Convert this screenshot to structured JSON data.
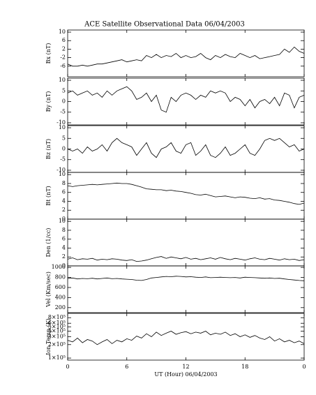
{
  "title": "ACE Satellite Observational Data   06/04/2003",
  "chart_data": [
    {
      "type": "line",
      "ylabel": "Bx (nT)",
      "ylim": [
        -11,
        11
      ],
      "yticks": [
        10,
        6,
        2,
        -2,
        -6
      ],
      "xlim": [
        0,
        24
      ],
      "xticks": [
        0,
        6,
        12,
        18,
        {
          "value": 24,
          "label": "0"
        }
      ],
      "x": [
        0,
        0.5,
        1,
        1.5,
        2,
        2.5,
        3,
        3.5,
        4,
        4.5,
        5,
        5.5,
        6,
        6.5,
        7,
        7.5,
        8,
        8.5,
        9,
        9.5,
        10,
        10.5,
        11,
        11.5,
        12,
        12.5,
        13,
        13.5,
        14,
        14.5,
        15,
        15.5,
        16,
        16.5,
        17,
        17.5,
        18,
        18.5,
        19,
        19.5,
        20,
        20.5,
        21,
        21.5,
        22,
        22.5,
        23,
        23.5,
        24
      ],
      "series": [
        {
          "color": "#000000",
          "values": [
            -5,
            -6,
            -6,
            -5.5,
            -6,
            -5.5,
            -5,
            -5,
            -4.5,
            -4,
            -3.5,
            -3,
            -4,
            -3.5,
            -3,
            -3.5,
            -1,
            -2,
            -0.5,
            -2,
            -1,
            -1.5,
            0,
            -2,
            -1,
            -2,
            -1.5,
            0,
            -2,
            -3,
            -1,
            -2,
            -0.5,
            -1.5,
            -2,
            0,
            -1,
            -2,
            -1,
            -2.5,
            -2,
            -1.5,
            -1,
            -0.5,
            2,
            0.5,
            3,
            1,
            0
          ]
        }
      ]
    },
    {
      "type": "line",
      "ylabel": "By (nT)",
      "ylim": [
        -11,
        11
      ],
      "yticks": [
        10,
        5,
        0,
        -5,
        -10
      ],
      "xlim": [
        0,
        24
      ],
      "xticks": [
        0,
        6,
        12,
        18,
        {
          "value": 24,
          "label": "0"
        }
      ],
      "x": [
        0,
        0.5,
        1,
        1.5,
        2,
        2.5,
        3,
        3.5,
        4,
        4.5,
        5,
        5.5,
        6,
        6.5,
        7,
        7.5,
        8,
        8.5,
        9,
        9.5,
        10,
        10.5,
        11,
        11.5,
        12,
        12.5,
        13,
        13.5,
        14,
        14.5,
        15,
        15.5,
        16,
        16.5,
        17,
        17.5,
        18,
        18.5,
        19,
        19.5,
        20,
        20.5,
        21,
        21.5,
        22,
        22.5,
        23,
        23.5,
        24
      ],
      "series": [
        {
          "color": "#000000",
          "values": [
            4,
            5,
            3,
            4,
            5,
            3,
            4,
            2,
            5,
            3,
            5,
            6,
            7,
            5,
            1,
            2,
            4,
            0,
            3,
            -4,
            -5,
            2,
            0,
            3,
            4,
            3,
            1,
            3,
            2,
            5,
            4,
            5,
            4,
            0,
            2,
            1,
            -2,
            1,
            -3,
            0,
            1,
            -1,
            2,
            -2,
            4,
            3,
            -3,
            2,
            3
          ]
        }
      ]
    },
    {
      "type": "line",
      "ylabel": "Bz (nT)",
      "ylim": [
        -11,
        11
      ],
      "yticks": [
        10,
        5,
        0,
        -5,
        -10
      ],
      "xlim": [
        0,
        24
      ],
      "xticks": [
        0,
        6,
        12,
        18,
        {
          "value": 24,
          "label": "0"
        }
      ],
      "x": [
        0,
        0.5,
        1,
        1.5,
        2,
        2.5,
        3,
        3.5,
        4,
        4.5,
        5,
        5.5,
        6,
        6.5,
        7,
        7.5,
        8,
        8.5,
        9,
        9.5,
        10,
        10.5,
        11,
        11.5,
        12,
        12.5,
        13,
        13.5,
        14,
        14.5,
        15,
        15.5,
        16,
        16.5,
        17,
        17.5,
        18,
        18.5,
        19,
        19.5,
        20,
        20.5,
        21,
        21.5,
        22,
        22.5,
        23,
        23.5,
        24
      ],
      "series": [
        {
          "color": "#000000",
          "values": [
            0,
            -1,
            0,
            -2,
            1,
            -1,
            0,
            2,
            -1,
            3,
            5,
            3,
            2,
            1,
            -3,
            0,
            3,
            -2,
            -4,
            0,
            1,
            3,
            -1,
            -2,
            2,
            3,
            -3,
            -1,
            2,
            -3,
            -4,
            -2,
            1,
            -3,
            -2,
            0,
            2,
            -2,
            -3,
            0,
            4,
            5,
            4,
            5,
            3,
            1,
            2,
            -1,
            0
          ]
        }
      ]
    },
    {
      "type": "line",
      "ylabel": "Bt (nT)",
      "ylim": [
        0,
        10.5
      ],
      "yticks": [
        10,
        8,
        6,
        4,
        2,
        0
      ],
      "xlim": [
        0,
        24
      ],
      "xticks": [
        0,
        6,
        12,
        18,
        {
          "value": 24,
          "label": "0"
        }
      ],
      "x": [
        0,
        0.5,
        1,
        1.5,
        2,
        2.5,
        3,
        3.5,
        4,
        4.5,
        5,
        5.5,
        6,
        6.5,
        7,
        7.5,
        8,
        8.5,
        9,
        9.5,
        10,
        10.5,
        11,
        11.5,
        12,
        12.5,
        13,
        13.5,
        14,
        14.5,
        15,
        15.5,
        16,
        16.5,
        17,
        17.5,
        18,
        18.5,
        19,
        19.5,
        20,
        20.5,
        21,
        21.5,
        22,
        22.5,
        23,
        23.5,
        24
      ],
      "series": [
        {
          "color": "#000000",
          "values": [
            7.5,
            7.3,
            7.5,
            7.6,
            7.7,
            7.8,
            7.7,
            7.8,
            7.9,
            8,
            8.1,
            8,
            8,
            7.8,
            7.5,
            7.2,
            6.8,
            6.7,
            6.6,
            6.6,
            6.4,
            6.5,
            6.3,
            6.2,
            6,
            5.8,
            5.5,
            5.4,
            5.6,
            5.3,
            5,
            5.1,
            5.2,
            5,
            4.8,
            5,
            4.9,
            4.7,
            4.6,
            4.8,
            4.5,
            4.6,
            4.3,
            4.2,
            4,
            3.8,
            3.5,
            3.3,
            3.6
          ]
        }
      ]
    },
    {
      "type": "line",
      "ylabel": "Den (1/cc)",
      "ylim": [
        0,
        10.5
      ],
      "yticks": [
        10,
        8,
        6,
        4,
        2,
        0
      ],
      "xlim": [
        0,
        24
      ],
      "xticks": [
        0,
        6,
        12,
        18,
        {
          "value": 24,
          "label": "0"
        }
      ],
      "x": [
        0,
        0.5,
        1,
        1.5,
        2,
        2.5,
        3,
        3.5,
        4,
        4.5,
        5,
        5.5,
        6,
        6.5,
        7,
        7.5,
        8,
        8.5,
        9,
        9.5,
        10,
        10.5,
        11,
        11.5,
        12,
        12.5,
        13,
        13.5,
        14,
        14.5,
        15,
        15.5,
        16,
        16.5,
        17,
        17.5,
        18,
        18.5,
        19,
        19.5,
        20,
        20.5,
        21,
        21.5,
        22,
        22.5,
        23,
        23.5,
        24
      ],
      "series": [
        {
          "color": "#000000",
          "values": [
            1.5,
            1.8,
            1.4,
            1.6,
            1.5,
            1.7,
            1.3,
            1.5,
            1.4,
            1.6,
            1.5,
            1.3,
            1.2,
            1.4,
            1.0,
            1.1,
            1.3,
            1.6,
            1.9,
            2.1,
            1.7,
            2.0,
            1.8,
            1.6,
            1.9,
            1.5,
            1.7,
            1.4,
            1.6,
            1.8,
            1.5,
            1.9,
            1.6,
            1.4,
            1.7,
            1.5,
            1.3,
            1.6,
            1.8,
            1.5,
            1.4,
            1.7,
            1.5,
            1.3,
            1.6,
            1.4,
            1.5,
            1.2,
            1.4
          ]
        }
      ]
    },
    {
      "type": "line",
      "ylabel": "Vel (Km/sec)",
      "ylim": [
        100,
        1030
      ],
      "yticks": [
        1000,
        800,
        600,
        400,
        200
      ],
      "xlim": [
        0,
        24
      ],
      "xticks": [
        0,
        6,
        12,
        18,
        {
          "value": 24,
          "label": "0"
        }
      ],
      "x": [
        0,
        0.5,
        1,
        1.5,
        2,
        2.5,
        3,
        3.5,
        4,
        4.5,
        5,
        5.5,
        6,
        6.5,
        7,
        7.5,
        8,
        8.5,
        9,
        9.5,
        10,
        10.5,
        11,
        11.5,
        12,
        12.5,
        13,
        13.5,
        14,
        14.5,
        15,
        15.5,
        16,
        16.5,
        17,
        17.5,
        18,
        18.5,
        19,
        19.5,
        20,
        20.5,
        21,
        21.5,
        22,
        22.5,
        23,
        23.5,
        24
      ],
      "series": [
        {
          "color": "#000000",
          "values": [
            780,
            790,
            770,
            780,
            775,
            785,
            770,
            780,
            790,
            775,
            780,
            770,
            765,
            760,
            745,
            740,
            760,
            790,
            800,
            810,
            820,
            815,
            825,
            820,
            810,
            815,
            805,
            800,
            810,
            795,
            800,
            805,
            800,
            795,
            800,
            790,
            805,
            800,
            795,
            790,
            785,
            790,
            780,
            785,
            770,
            760,
            750,
            740,
            735
          ]
        }
      ]
    },
    {
      "type": "line",
      "log": true,
      "ylabel": "Ion Temp (K)",
      "ylim": [
        90000,
        1000000
      ],
      "yticks": [
        {
          "value": 800000,
          "label": "8×10⁵"
        },
        {
          "value": 600000,
          "label": "6×10⁵"
        },
        {
          "value": 500000,
          "label": "5×10⁵"
        },
        {
          "value": 400000,
          "label": "4×10⁵"
        },
        {
          "value": 300000,
          "label": "3×10⁵"
        },
        {
          "value": 200000,
          "label": "2×10⁵"
        },
        {
          "value": 100000,
          "label": "1×10⁵"
        }
      ],
      "xlim": [
        0,
        24
      ],
      "xticks": [
        0,
        6,
        12,
        18,
        {
          "value": 24,
          "label": "0"
        }
      ],
      "xlabel": "UT (Hour)   06/04/2003",
      "x": [
        0,
        0.5,
        1,
        1.5,
        2,
        2.5,
        3,
        3.5,
        4,
        4.5,
        5,
        5.5,
        6,
        6.5,
        7,
        7.5,
        8,
        8.5,
        9,
        9.5,
        10,
        10.5,
        11,
        11.5,
        12,
        12.5,
        13,
        13.5,
        14,
        14.5,
        15,
        15.5,
        16,
        16.5,
        17,
        17.5,
        18,
        18.5,
        19,
        19.5,
        20,
        20.5,
        21,
        21.5,
        22,
        22.5,
        23,
        23.5,
        24
      ],
      "series": [
        {
          "color": "#000000",
          "values": [
            250000,
            230000,
            280000,
            220000,
            260000,
            240000,
            200000,
            230000,
            260000,
            210000,
            250000,
            230000,
            270000,
            250000,
            310000,
            280000,
            350000,
            300000,
            380000,
            320000,
            360000,
            400000,
            340000,
            370000,
            390000,
            350000,
            380000,
            360000,
            400000,
            330000,
            360000,
            340000,
            380000,
            320000,
            350000,
            300000,
            330000,
            290000,
            320000,
            280000,
            260000,
            300000,
            240000,
            270000,
            230000,
            250000,
            220000,
            240000,
            210000
          ]
        }
      ]
    }
  ]
}
